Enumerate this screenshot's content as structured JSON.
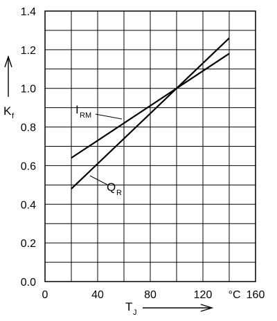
{
  "chart_data": {
    "type": "line",
    "xlabel": "T",
    "xlabel_sub": "J",
    "ylabel": "K",
    "ylabel_sub": "f",
    "x_unit": "°C",
    "xlim": [
      0,
      160
    ],
    "ylim": [
      0.0,
      1.4
    ],
    "x_ticks": [
      0,
      40,
      80,
      120,
      160
    ],
    "x_tick_labels": [
      "0",
      "40",
      "80",
      "120",
      "°C",
      "160"
    ],
    "y_ticks": [
      0.0,
      0.2,
      0.4,
      0.6,
      0.8,
      1.0,
      1.2,
      1.4
    ],
    "y_tick_labels": [
      "0.0",
      "0.2",
      "0.4",
      "0.6",
      "0.8",
      "1.0",
      "1.2",
      "1.4"
    ],
    "grid": true,
    "series": [
      {
        "name": "I",
        "name_sub": "RM",
        "x": [
          20,
          100,
          140
        ],
        "values": [
          0.64,
          1.0,
          1.18
        ]
      },
      {
        "name": "Q",
        "name_sub": "R",
        "x": [
          20,
          100,
          140
        ],
        "values": [
          0.48,
          1.0,
          1.26
        ]
      }
    ]
  }
}
